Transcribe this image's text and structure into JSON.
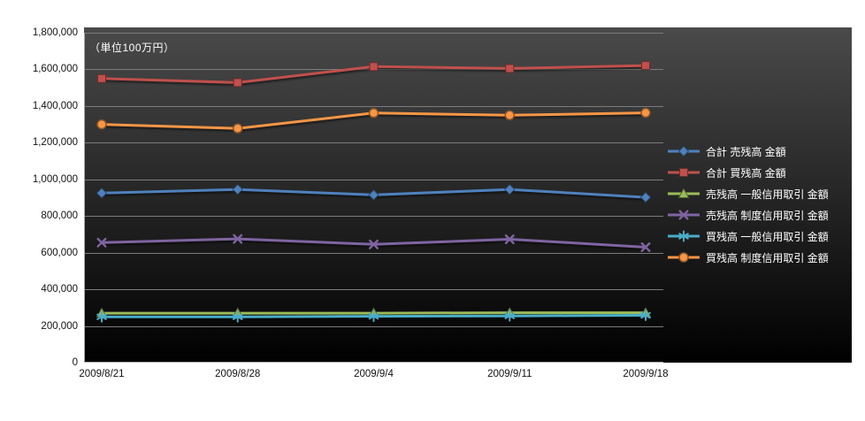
{
  "chart_data": {
    "type": "line",
    "title": "",
    "unit_label": "（単位100万円）",
    "categories": [
      "2009/8/21",
      "2009/8/28",
      "2009/9/4",
      "2009/9/11",
      "2009/9/18"
    ],
    "series": [
      {
        "name": "合計 売残高 金額",
        "color": "#4f81bd",
        "marker": "diamond",
        "values": [
          925000,
          945000,
          915000,
          945000,
          902000
        ]
      },
      {
        "name": "合計 買残高 金額",
        "color": "#c0504d",
        "marker": "square",
        "values": [
          1550000,
          1528000,
          1615000,
          1605000,
          1621000
        ]
      },
      {
        "name": "売残高 一般信用取引 金額",
        "color": "#9bbb59",
        "marker": "triangle",
        "values": [
          270000,
          270000,
          270000,
          272000,
          272000
        ]
      },
      {
        "name": "売残高 制度信用取引 金額",
        "color": "#8064a2",
        "marker": "x",
        "values": [
          655000,
          675000,
          645000,
          673000,
          630000
        ]
      },
      {
        "name": "買残高 一般信用取引 金額",
        "color": "#4bacc6",
        "marker": "asterisk",
        "values": [
          250000,
          250000,
          253000,
          255000,
          258000
        ]
      },
      {
        "name": "買残高 制度信用取引 金額",
        "color": "#f79646",
        "marker": "circle",
        "values": [
          1300000,
          1278000,
          1362000,
          1350000,
          1363000
        ]
      }
    ],
    "ylim": [
      0,
      1800000
    ],
    "ytick_step": 200000,
    "ytick_labels": [
      "0",
      "200,000",
      "400,000",
      "600,000",
      "800,000",
      "1,000,000",
      "1,200,000",
      "1,400,000",
      "1,600,000",
      "1,800,000"
    ],
    "grid": true,
    "legend_position": "right",
    "plot_background": {
      "top": "#4a4a4a",
      "bottom": "#000000"
    },
    "gridline_color": "#7c7c7c",
    "axis_label_color": "#111111",
    "legend_text_color": "#ffffff"
  }
}
